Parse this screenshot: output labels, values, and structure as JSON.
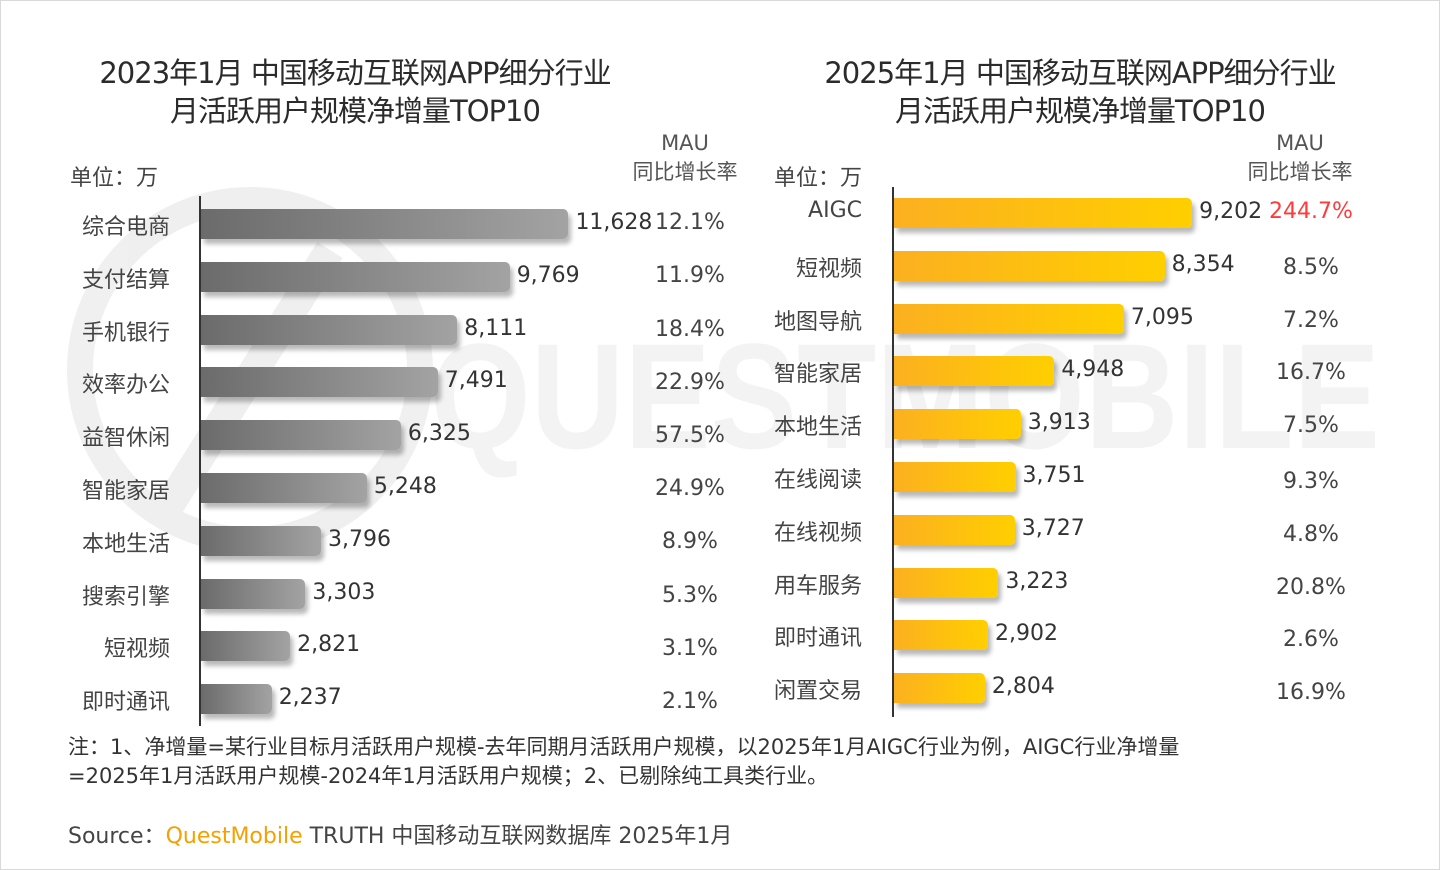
{
  "watermark": {
    "text": "QUESTMOBILE"
  },
  "chart_data": [
    {
      "type": "bar",
      "orientation": "horizontal",
      "title": "2023年1月 中国移动互联网APP细分行业月活跃用户规模净增量TOP10",
      "title_lines": [
        "2023年1月 中国移动互联网APP细分行业",
        "月活跃用户规模净增量TOP10"
      ],
      "unit_label": "单位：万",
      "secondary_header": [
        "MAU",
        "同比增长率"
      ],
      "color": "#8a8a8a",
      "categories": [
        "综合电商",
        "支付结算",
        "手机银行",
        "效率办公",
        "益智休闲",
        "智能家居",
        "本地生活",
        "搜索引擎",
        "短视频",
        "即时通讯"
      ],
      "values": [
        11628,
        9769,
        8111,
        7491,
        6325,
        5248,
        3796,
        3303,
        2821,
        2237
      ],
      "value_labels": [
        "11,628",
        "9,769",
        "8,111",
        "7,491",
        "6,325",
        "5,248",
        "3,796",
        "3,303",
        "2,821",
        "2,237"
      ],
      "mau_growth": [
        "12.1%",
        "11.9%",
        "18.4%",
        "22.9%",
        "57.5%",
        "24.9%",
        "8.9%",
        "5.3%",
        "3.1%",
        "2.1%"
      ],
      "highlight_index": -1
    },
    {
      "type": "bar",
      "orientation": "horizontal",
      "title": "2025年1月 中国移动互联网APP细分行业月活跃用户规模净增量TOP10",
      "title_lines": [
        "2025年1月 中国移动互联网APP细分行业",
        "月活跃用户规模净增量TOP10"
      ],
      "unit_label": "单位：万",
      "secondary_header": [
        "MAU",
        "同比增长率"
      ],
      "color": "#ffc20e",
      "highlight_color": "#ff3b3b",
      "categories": [
        "AIGC",
        "短视频",
        "地图导航",
        "智能家居",
        "本地生活",
        "在线阅读",
        "在线视频",
        "用车服务",
        "即时通讯",
        "闲置交易"
      ],
      "values": [
        9202,
        8354,
        7095,
        4948,
        3913,
        3751,
        3727,
        3223,
        2902,
        2804
      ],
      "value_labels": [
        "9,202",
        "8,354",
        "7,095",
        "4,948",
        "3,913",
        "3,751",
        "3,727",
        "3,223",
        "2,902",
        "2,804"
      ],
      "mau_growth": [
        "244.7%",
        "8.5%",
        "7.2%",
        "16.7%",
        "7.5%",
        "9.3%",
        "4.8%",
        "20.8%",
        "2.6%",
        "16.9%"
      ],
      "highlight_index": 0
    }
  ],
  "notes": {
    "line1": "注：1、净增量=某行业目标月活跃用户规模-去年同期月活跃用户规模，以2025年1月AIGC行业为例，AIGC行业净增量",
    "line2": "=2025年1月活跃用户规模-2024年1月活跃用户规模；2、已剔除纯工具类行业。"
  },
  "source": {
    "prefix": "Source：",
    "brand": "QuestMobile",
    "suffix": " TRUTH 中国移动互联网数据库 2025年1月"
  }
}
